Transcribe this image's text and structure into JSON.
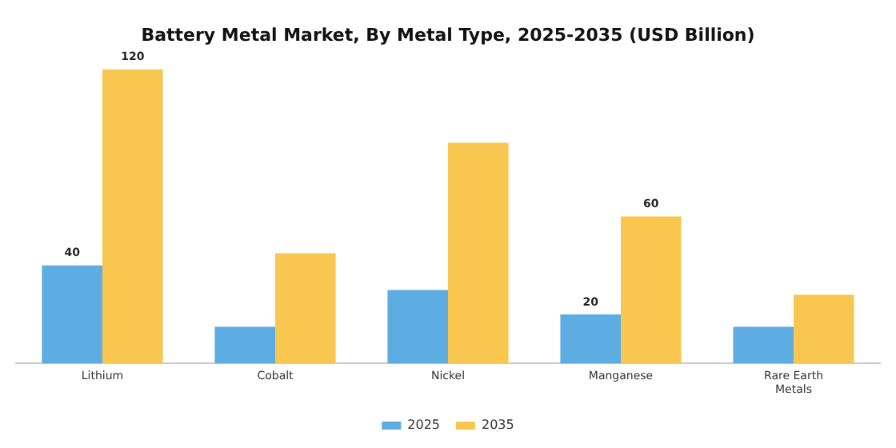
{
  "chart_data": {
    "type": "bar",
    "title": "Battery Metal Market, By Metal Type, 2025-2035 (USD Billion)",
    "categories": [
      "Lithium",
      "Cobalt",
      "Nickel",
      "Manganese",
      "Rare Earth Metals"
    ],
    "series": [
      {
        "name": "2025",
        "color": "#5dade2",
        "values": [
          40,
          15,
          30,
          20,
          15
        ],
        "value_labels": [
          "40",
          null,
          null,
          "20",
          null
        ]
      },
      {
        "name": "2035",
        "color": "#f9c74f",
        "values": [
          120,
          45,
          90,
          60,
          28
        ],
        "value_labels": [
          "120",
          null,
          null,
          "60",
          null
        ]
      }
    ],
    "legend": "bottom",
    "grid": false
  }
}
